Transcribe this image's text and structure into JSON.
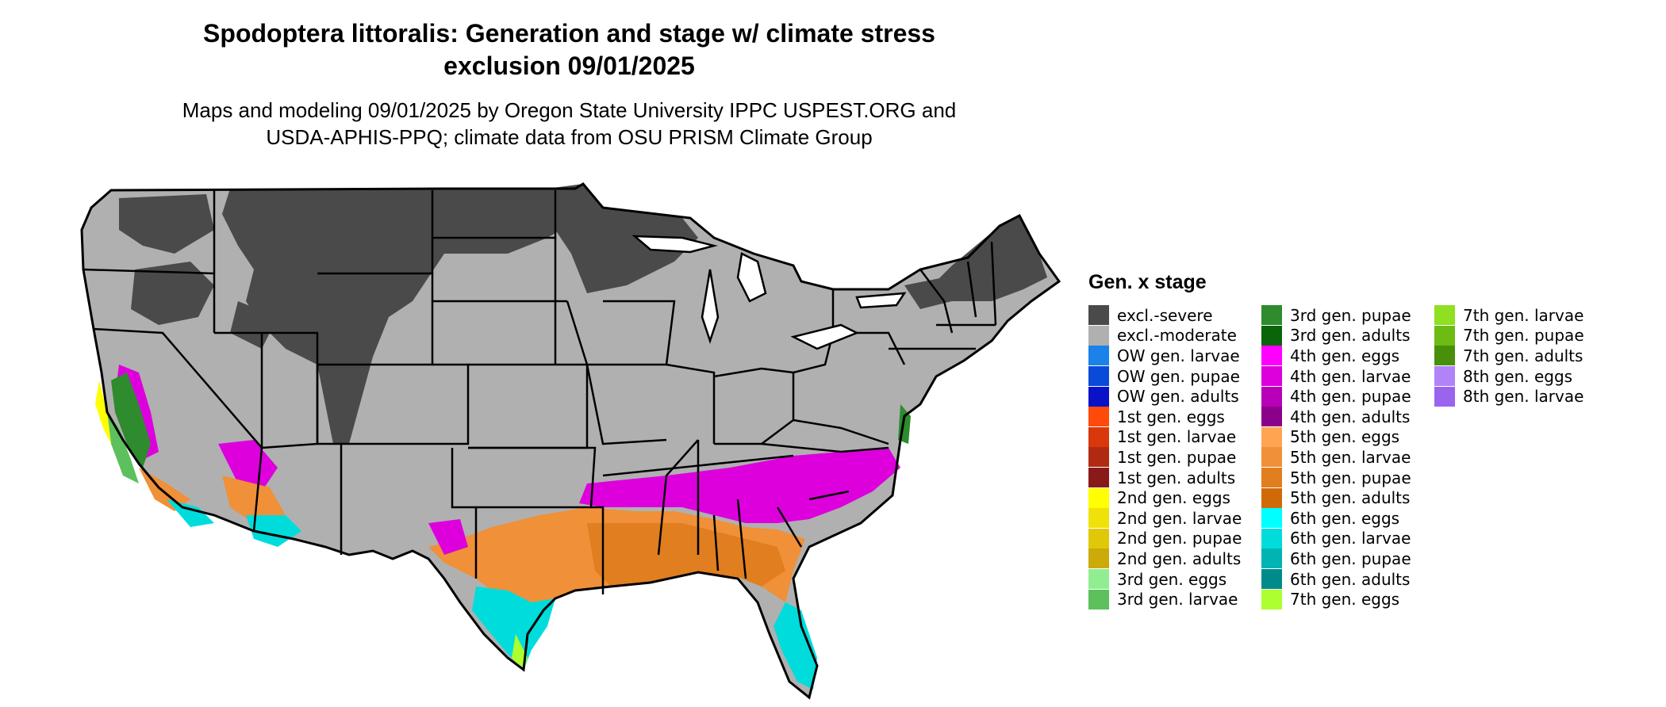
{
  "title_line1": "Spodoptera littoralis: Generation and stage w/ climate stress",
  "title_line2": "exclusion 09/01/2025",
  "subtitle_line1": "Maps and modeling 09/01/2025 by Oregon State University IPPC USPEST.ORG and",
  "subtitle_line2": "USDA-APHIS-PPQ; climate data from OSU PRISM Climate Group",
  "legend": {
    "title": "Gen. x stage",
    "columns": [
      [
        {
          "label": "excl.-severe",
          "color": "#4a4a4a"
        },
        {
          "label": "excl.-moderate",
          "color": "#b0b0b0"
        },
        {
          "label": "OW gen. larvae",
          "color": "#1a82e8"
        },
        {
          "label": "OW gen. pupae",
          "color": "#0a4ad8"
        },
        {
          "label": "OW gen. adults",
          "color": "#0a12c8"
        },
        {
          "label": "1st gen. eggs",
          "color": "#ff4a0a"
        },
        {
          "label": "1st gen. larvae",
          "color": "#d8380a"
        },
        {
          "label": "1st gen. pupae",
          "color": "#b02a12"
        },
        {
          "label": "1st gen. adults",
          "color": "#8a1a1a"
        },
        {
          "label": "2nd gen. eggs",
          "color": "#ffff00"
        },
        {
          "label": "2nd gen. larvae",
          "color": "#f0e208"
        },
        {
          "label": "2nd gen. pupae",
          "color": "#e0c808"
        },
        {
          "label": "2nd gen. adults",
          "color": "#ccaa0a"
        },
        {
          "label": "3rd gen. eggs",
          "color": "#90ee90"
        },
        {
          "label": "3rd gen. larvae",
          "color": "#5cc05c"
        }
      ],
      [
        {
          "label": "3rd gen. pupae",
          "color": "#2e8b2e"
        },
        {
          "label": "3rd gen. adults",
          "color": "#0a640a"
        },
        {
          "label": "4th gen. eggs",
          "color": "#ff00ff"
        },
        {
          "label": "4th gen. larvae",
          "color": "#dd00dd"
        },
        {
          "label": "4th gen. pupae",
          "color": "#b800b8"
        },
        {
          "label": "4th gen. adults",
          "color": "#8b008b"
        },
        {
          "label": "5th gen. eggs",
          "color": "#ffa552"
        },
        {
          "label": "5th gen. larvae",
          "color": "#f09038"
        },
        {
          "label": "5th gen. pupae",
          "color": "#e07e20"
        },
        {
          "label": "5th gen. adults",
          "color": "#d06a08"
        },
        {
          "label": "6th gen. eggs",
          "color": "#00ffff"
        },
        {
          "label": "6th gen. larvae",
          "color": "#00dcdc"
        },
        {
          "label": "6th gen. pupae",
          "color": "#00b4b4"
        },
        {
          "label": "6th gen. adults",
          "color": "#008b8b"
        },
        {
          "label": "7th gen. eggs",
          "color": "#adff2f"
        }
      ],
      [
        {
          "label": "7th gen. larvae",
          "color": "#8ee020"
        },
        {
          "label": "7th gen. pupae",
          "color": "#6cbc14"
        },
        {
          "label": "7th gen. adults",
          "color": "#48900a"
        },
        {
          "label": "8th gen. eggs",
          "color": "#b084f8"
        },
        {
          "label": "8th gen. larvae",
          "color": "#9a64ee"
        }
      ]
    ]
  }
}
